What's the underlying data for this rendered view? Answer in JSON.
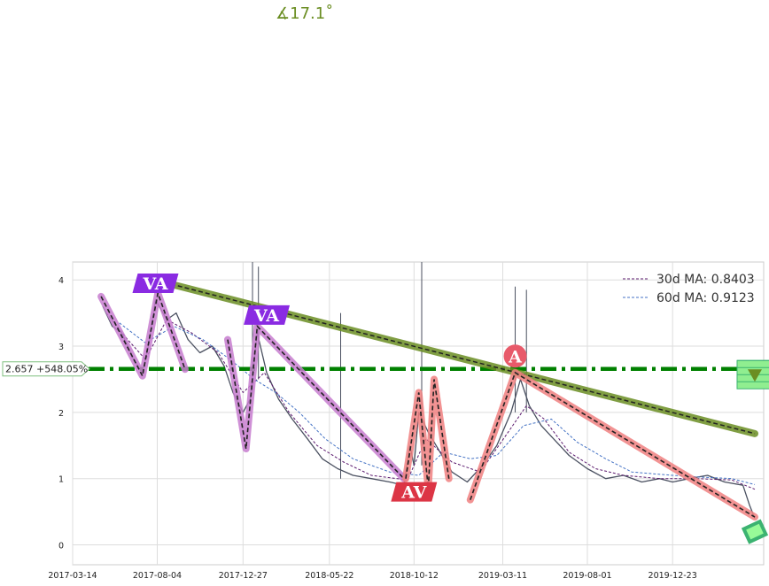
{
  "chart_data": {
    "type": "line",
    "angle_label": "∡17.1˚",
    "x_ticks": [
      "2017-03-14",
      "2017-08-04",
      "2017-12-27",
      "2018-05-22",
      "2018-10-12",
      "2019-03-11",
      "2019-08-01",
      "2019-12-23"
    ],
    "y_ticks": [
      "0",
      "1",
      "2",
      "3",
      "4"
    ],
    "ylim": [
      -0.3,
      4.27
    ],
    "xlim": [
      "2017-03-14",
      "2020-05-25"
    ],
    "grid": true,
    "legend": {
      "placement": "top-right",
      "entries": [
        {
          "label": "30d MA: 0.8403",
          "color": "#5b1a6e",
          "dash": "dashed"
        },
        {
          "label": "60d MA: 0.9123",
          "color": "#4472c4",
          "dash": "dashed"
        }
      ]
    },
    "horizontal_level": {
      "value": 2.657,
      "label": "2.657 +548.05%",
      "color": "#008000"
    },
    "price_series": {
      "name": "price",
      "color": "#4a5060",
      "points": [
        [
          "2017-05-04",
          3.6
        ],
        [
          "2017-05-20",
          3.3
        ],
        [
          "2017-06-05",
          3.2
        ],
        [
          "2017-06-25",
          2.8
        ],
        [
          "2017-07-10",
          2.6
        ],
        [
          "2017-07-20",
          3.0
        ],
        [
          "2017-08-01",
          3.7
        ],
        [
          "2017-08-20",
          3.4
        ],
        [
          "2017-09-05",
          3.5
        ],
        [
          "2017-09-25",
          3.1
        ],
        [
          "2017-10-15",
          2.9
        ],
        [
          "2017-11-05",
          3.0
        ],
        [
          "2017-11-25",
          2.7
        ],
        [
          "2017-12-10",
          2.3
        ],
        [
          "2017-12-27",
          2.0
        ],
        [
          "2018-01-08",
          2.2
        ],
        [
          "2018-01-20",
          3.2
        ],
        [
          "2018-02-05",
          2.6
        ],
        [
          "2018-02-25",
          2.2
        ],
        [
          "2018-03-20",
          1.9
        ],
        [
          "2018-04-15",
          1.6
        ],
        [
          "2018-05-10",
          1.3
        ],
        [
          "2018-06-05",
          1.15
        ],
        [
          "2018-07-01",
          1.05
        ],
        [
          "2018-08-01",
          1.0
        ],
        [
          "2018-09-01",
          0.95
        ],
        [
          "2018-09-25",
          0.9
        ],
        [
          "2018-10-05",
          1.5
        ],
        [
          "2018-10-12",
          1.2
        ],
        [
          "2018-10-20",
          2.0
        ],
        [
          "2018-11-05",
          1.7
        ],
        [
          "2018-11-25",
          1.4
        ],
        [
          "2018-12-15",
          1.1
        ],
        [
          "2019-01-10",
          0.95
        ],
        [
          "2019-02-05",
          1.2
        ],
        [
          "2019-03-01",
          1.5
        ],
        [
          "2019-03-25",
          2.0
        ],
        [
          "2019-04-10",
          2.5
        ],
        [
          "2019-04-25",
          2.1
        ],
        [
          "2019-05-15",
          1.8
        ],
        [
          "2019-06-05",
          1.6
        ],
        [
          "2019-07-01",
          1.35
        ],
        [
          "2019-08-01",
          1.15
        ],
        [
          "2019-09-01",
          1.0
        ],
        [
          "2019-10-01",
          1.05
        ],
        [
          "2019-11-01",
          0.95
        ],
        [
          "2019-12-01",
          1.0
        ],
        [
          "2019-12-23",
          0.95
        ],
        [
          "2020-01-20",
          1.0
        ],
        [
          "2020-02-20",
          1.05
        ],
        [
          "2020-03-20",
          0.95
        ],
        [
          "2020-04-20",
          0.9
        ],
        [
          "2020-05-01",
          0.6
        ],
        [
          "2020-05-10",
          0.4
        ]
      ]
    },
    "price_spikes": [
      {
        "x": "2018-01-12",
        "low": 2.3,
        "high": 4.27
      },
      {
        "x": "2018-01-22",
        "low": 2.5,
        "high": 4.2
      },
      {
        "x": "2018-06-10",
        "low": 1.0,
        "high": 3.5
      },
      {
        "x": "2018-10-25",
        "low": 1.2,
        "high": 4.27
      },
      {
        "x": "2019-04-01",
        "low": 2.0,
        "high": 3.9
      },
      {
        "x": "2019-04-20",
        "low": 2.0,
        "high": 3.85
      }
    ],
    "ma30": {
      "name": "30d MA: 0.8403",
      "points": [
        [
          "2017-05-10",
          3.5
        ],
        [
          "2017-06-15",
          3.1
        ],
        [
          "2017-07-15",
          2.8
        ],
        [
          "2017-08-20",
          3.4
        ],
        [
          "2017-10-01",
          3.2
        ],
        [
          "2017-11-15",
          2.9
        ],
        [
          "2017-12-27",
          2.3
        ],
        [
          "2018-02-01",
          2.6
        ],
        [
          "2018-03-15",
          2.0
        ],
        [
          "2018-05-01",
          1.5
        ],
        [
          "2018-06-15",
          1.25
        ],
        [
          "2018-08-01",
          1.05
        ],
        [
          "2018-10-01",
          0.98
        ],
        [
          "2018-11-01",
          1.6
        ],
        [
          "2018-12-15",
          1.25
        ],
        [
          "2019-02-01",
          1.1
        ],
        [
          "2019-03-20",
          1.7
        ],
        [
          "2019-04-20",
          2.1
        ],
        [
          "2019-05-20",
          1.9
        ],
        [
          "2019-07-01",
          1.4
        ],
        [
          "2019-08-15",
          1.15
        ],
        [
          "2019-10-01",
          1.05
        ],
        [
          "2019-12-01",
          1.0
        ],
        [
          "2020-02-01",
          1.0
        ],
        [
          "2020-04-01",
          0.98
        ],
        [
          "2020-05-10",
          0.84
        ]
      ]
    },
    "ma60": {
      "name": "60d MA: 0.9123",
      "points": [
        [
          "2017-06-01",
          3.35
        ],
        [
          "2017-07-15",
          3.05
        ],
        [
          "2017-09-01",
          3.3
        ],
        [
          "2017-10-20",
          3.1
        ],
        [
          "2017-12-05",
          2.8
        ],
        [
          "2018-01-15",
          2.5
        ],
        [
          "2018-02-20",
          2.3
        ],
        [
          "2018-04-01",
          2.0
        ],
        [
          "2018-05-15",
          1.6
        ],
        [
          "2018-07-01",
          1.3
        ],
        [
          "2018-09-01",
          1.1
        ],
        [
          "2018-10-20",
          1.05
        ],
        [
          "2018-12-01",
          1.4
        ],
        [
          "2019-01-15",
          1.3
        ],
        [
          "2019-03-01",
          1.35
        ],
        [
          "2019-04-15",
          1.8
        ],
        [
          "2019-06-01",
          1.9
        ],
        [
          "2019-07-15",
          1.55
        ],
        [
          "2019-09-01",
          1.3
        ],
        [
          "2019-10-15",
          1.1
        ],
        [
          "2019-12-23",
          1.05
        ],
        [
          "2020-02-15",
          1.02
        ],
        [
          "2020-04-01",
          1.0
        ],
        [
          "2020-05-10",
          0.91
        ]
      ]
    },
    "trendline": {
      "from": [
        "2017-08-04",
        3.99
      ],
      "to": [
        "2020-05-10",
        1.68
      ],
      "color": "#6b8e23"
    },
    "pattern_lines": [
      {
        "color": "#c77dcf",
        "points": [
          [
            "2017-05-01",
            3.75
          ],
          [
            "2017-07-10",
            2.55
          ],
          [
            "2017-08-05",
            3.8
          ],
          [
            "2017-09-20",
            2.65
          ]
        ]
      },
      {
        "color": "#c77dcf",
        "points": [
          [
            "2017-12-01",
            3.1
          ],
          [
            "2018-01-01",
            1.45
          ],
          [
            "2018-01-20",
            3.3
          ],
          [
            "2018-09-25",
            1.0
          ]
        ]
      },
      {
        "color": "#f08080",
        "points": [
          [
            "2018-09-28",
            1.0
          ],
          [
            "2018-10-20",
            2.3
          ],
          [
            "2018-11-05",
            0.85
          ],
          [
            "2018-11-15",
            2.5
          ],
          [
            "2018-12-10",
            1.0
          ]
        ]
      },
      {
        "color": "#f08080",
        "points": [
          [
            "2019-01-15",
            0.68
          ],
          [
            "2019-04-01",
            2.6
          ],
          [
            "2020-05-10",
            0.42
          ]
        ]
      }
    ],
    "markers": [
      {
        "label": "VA",
        "x": "2017-08-01",
        "y": 3.95,
        "color": "#8a2be2",
        "shape": "rect"
      },
      {
        "label": "VA",
        "x": "2018-02-05",
        "y": 3.47,
        "color": "#8a2be2",
        "shape": "rect"
      },
      {
        "label": "AV",
        "x": "2018-10-12",
        "y": 0.8,
        "color": "#dc3545",
        "shape": "rect"
      },
      {
        "label": "A",
        "x": "2019-04-01",
        "y": 2.85,
        "color": "#e85a6a",
        "shape": "circle"
      }
    ],
    "icons": [
      {
        "name": "wall-icon",
        "x": "2020-05-10",
        "y": 2.57
      },
      {
        "name": "bug-icon",
        "x": "2020-05-10",
        "y": 0.2
      }
    ]
  }
}
